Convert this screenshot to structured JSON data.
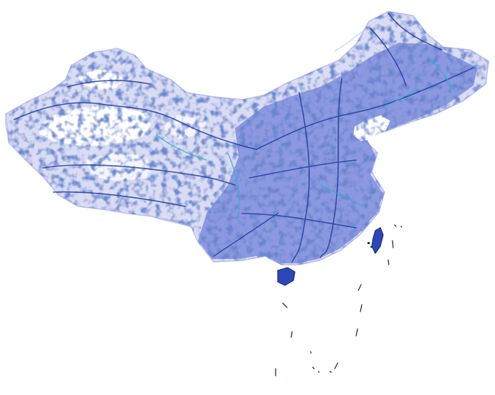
{
  "map": {
    "type": "road-network",
    "background": "#ffffff",
    "colors": {
      "landmass_fill": "#d9dcf3",
      "faint_roads": "#b8bff0",
      "minor_roads": "#5a6fd6",
      "major_roads": "#243a9e",
      "highways": "#27b3cc",
      "island_outline": "#1b2a6b"
    },
    "labels": []
  }
}
